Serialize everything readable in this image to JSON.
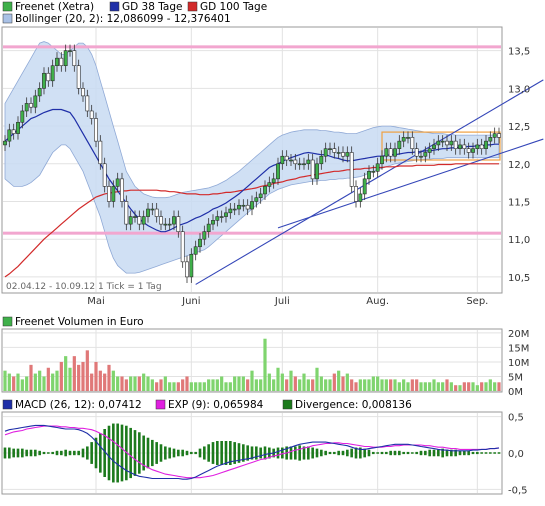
{
  "chart_data": [
    {
      "type": "candlestick",
      "panel": "price",
      "legend": [
        {
          "label": "Freenet (Xetra)",
          "color": "#3fb04a"
        },
        {
          "label": "GD 38 Tage",
          "color": "#1f2fa8"
        },
        {
          "label": "GD 100 Tage",
          "color": "#d22a2a"
        },
        {
          "label": "Bollinger (20, 2): 12,086099 - 12,376401",
          "color": "#a9c1e6"
        }
      ],
      "date_range_label": "02.04.12 - 10.09.12   1 Tick = 1 Tag",
      "x_tick_labels": [
        {
          "label": "Mai",
          "day": 21
        },
        {
          "label": "Juni",
          "day": 43
        },
        {
          "label": "Juli",
          "day": 64
        },
        {
          "label": "Aug.",
          "day": 86
        },
        {
          "label": "Sep.",
          "day": 109
        }
      ],
      "y_tick_labels": [
        "10,5",
        "11,0",
        "11,5",
        "12,0",
        "12,5",
        "13,0",
        "13,5"
      ],
      "ylim": [
        10.3,
        13.8
      ],
      "x_days": 115,
      "close": [
        12.3,
        12.45,
        12.4,
        12.55,
        12.7,
        12.8,
        12.75,
        12.9,
        13.0,
        13.2,
        13.1,
        13.3,
        13.4,
        13.3,
        13.5,
        13.5,
        13.3,
        13.0,
        12.9,
        12.7,
        12.6,
        12.3,
        12.0,
        11.7,
        11.5,
        11.7,
        11.8,
        11.5,
        11.2,
        11.3,
        11.3,
        11.2,
        11.3,
        11.4,
        11.4,
        11.3,
        11.2,
        11.2,
        11.2,
        11.3,
        11.1,
        10.7,
        10.5,
        10.8,
        10.9,
        11.0,
        11.1,
        11.2,
        11.25,
        11.3,
        11.3,
        11.35,
        11.4,
        11.4,
        11.45,
        11.45,
        11.4,
        11.5,
        11.55,
        11.6,
        11.7,
        11.75,
        11.8,
        12.0,
        12.1,
        12.05,
        12.05,
        12.0,
        12.0,
        12.0,
        12.05,
        11.8,
        12.0,
        12.1,
        12.2,
        12.2,
        12.15,
        12.15,
        12.1,
        12.15,
        11.7,
        11.5,
        11.6,
        11.8,
        11.9,
        11.9,
        12.0,
        12.1,
        12.2,
        12.1,
        12.2,
        12.3,
        12.35,
        12.35,
        12.2,
        12.1,
        12.1,
        12.15,
        12.2,
        12.25,
        12.3,
        12.3,
        12.25,
        12.3,
        12.2,
        12.25,
        12.2,
        12.15,
        12.2,
        12.25,
        12.2,
        12.3,
        12.35,
        12.4,
        12.35
      ],
      "gd38": [
        12.3,
        12.35,
        12.4,
        12.45,
        12.5,
        12.55,
        12.6,
        12.62,
        12.65,
        12.68,
        12.7,
        12.72,
        12.72,
        12.72,
        12.7,
        12.68,
        12.6,
        12.5,
        12.4,
        12.3,
        12.2,
        12.1,
        12.0,
        11.9,
        11.8,
        11.72,
        11.64,
        11.56,
        11.48,
        11.4,
        11.33,
        11.27,
        11.22,
        11.18,
        11.15,
        11.12,
        11.1,
        11.1,
        11.12,
        11.15,
        11.18,
        11.2,
        11.22,
        11.25,
        11.28,
        11.3,
        11.33,
        11.36,
        11.4,
        11.42,
        11.45,
        11.48,
        11.52,
        11.56,
        11.6,
        11.65,
        11.7,
        11.75,
        11.8,
        11.85,
        11.9,
        11.95,
        11.98,
        12.0,
        12.03,
        12.06,
        12.08,
        12.1,
        12.12,
        12.14,
        12.15,
        12.14,
        12.13,
        12.12,
        12.12,
        12.1,
        12.08,
        12.07,
        12.05,
        12.04,
        12.04,
        12.05,
        12.06,
        12.07,
        12.08,
        12.09,
        12.1,
        12.1,
        12.11,
        12.12,
        12.12,
        12.13,
        12.14,
        12.15,
        12.15,
        12.16,
        12.16,
        12.17,
        12.17,
        12.18,
        12.19,
        12.2,
        12.2,
        12.21,
        12.21,
        12.22,
        12.22,
        12.23,
        12.23,
        12.24,
        12.24,
        12.25,
        12.25,
        12.26,
        12.26
      ],
      "gd100": [
        10.5,
        10.54,
        10.59,
        10.64,
        10.7,
        10.76,
        10.82,
        10.88,
        10.94,
        11.0,
        11.05,
        11.1,
        11.15,
        11.2,
        11.25,
        11.3,
        11.35,
        11.4,
        11.44,
        11.48,
        11.52,
        11.56,
        11.58,
        11.6,
        11.61,
        11.62,
        11.63,
        11.64,
        11.64,
        11.65,
        11.65,
        11.65,
        11.65,
        11.65,
        11.65,
        11.65,
        11.64,
        11.64,
        11.63,
        11.63,
        11.62,
        11.61,
        11.6,
        11.6,
        11.6,
        11.59,
        11.59,
        11.59,
        11.6,
        11.6,
        11.61,
        11.62,
        11.62,
        11.63,
        11.64,
        11.65,
        11.66,
        11.67,
        11.68,
        11.7,
        11.71,
        11.72,
        11.74,
        11.75,
        11.76,
        11.78,
        11.79,
        11.8,
        11.82,
        11.83,
        11.84,
        11.85,
        11.86,
        11.87,
        11.88,
        11.89,
        11.9,
        11.9,
        11.91,
        11.92,
        11.92,
        11.93,
        11.93,
        11.94,
        11.94,
        11.95,
        11.95,
        11.95,
        11.96,
        11.96,
        11.96,
        11.97,
        11.97,
        11.97,
        11.97,
        11.98,
        11.98,
        11.98,
        11.98,
        11.98,
        11.99,
        11.99,
        11.99,
        11.99,
        12.0,
        12.0,
        12.0,
        12.0,
        12.0,
        12.0,
        12.0,
        12.0,
        12.0,
        12.0,
        12.0
      ],
      "boll_upper": [
        12.8,
        12.9,
        13.0,
        13.1,
        13.2,
        13.3,
        13.4,
        13.5,
        13.6,
        13.62,
        13.6,
        13.55,
        13.5,
        13.45,
        13.45,
        13.5,
        13.55,
        13.6,
        13.6,
        13.55,
        13.45,
        13.3,
        13.1,
        12.9,
        12.7,
        12.5,
        12.3,
        12.1,
        11.9,
        11.8,
        11.7,
        11.65,
        11.6,
        11.58,
        11.56,
        11.55,
        11.55,
        11.55,
        11.56,
        11.58,
        11.6,
        11.62,
        11.63,
        11.64,
        11.65,
        11.66,
        11.67,
        11.68,
        11.7,
        11.72,
        11.75,
        11.78,
        11.82,
        11.86,
        11.9,
        11.95,
        12.0,
        12.05,
        12.1,
        12.15,
        12.2,
        12.25,
        12.3,
        12.35,
        12.38,
        12.4,
        12.42,
        12.43,
        12.44,
        12.45,
        12.45,
        12.45,
        12.45,
        12.44,
        12.44,
        12.43,
        12.42,
        12.42,
        12.41,
        12.4,
        12.4,
        12.4,
        12.42,
        12.44,
        12.46,
        12.48,
        12.49,
        12.5,
        12.5,
        12.5,
        12.49,
        12.48,
        12.47,
        12.46,
        12.45,
        12.44,
        12.43,
        12.42,
        12.41,
        12.4,
        12.4,
        12.4,
        12.39,
        12.39,
        12.38,
        12.38,
        12.38,
        12.38,
        12.38,
        12.38,
        12.38,
        12.38,
        12.38,
        12.38,
        12.38
      ],
      "boll_lower": [
        11.8,
        11.75,
        11.7,
        11.7,
        11.7,
        11.72,
        11.75,
        11.8,
        11.85,
        11.95,
        12.05,
        12.15,
        12.2,
        12.25,
        12.25,
        12.2,
        12.1,
        12.0,
        11.9,
        11.75,
        11.6,
        11.45,
        11.3,
        11.1,
        10.9,
        10.75,
        10.65,
        10.6,
        10.55,
        10.55,
        10.55,
        10.56,
        10.58,
        10.6,
        10.62,
        10.64,
        10.66,
        10.68,
        10.7,
        10.72,
        10.74,
        10.76,
        10.78,
        10.8,
        10.82,
        10.84,
        10.86,
        10.9,
        10.95,
        11.0,
        11.05,
        11.1,
        11.15,
        11.2,
        11.25,
        11.3,
        11.35,
        11.4,
        11.45,
        11.5,
        11.55,
        11.6,
        11.63,
        11.66,
        11.68,
        11.7,
        11.72,
        11.73,
        11.74,
        11.75,
        11.76,
        11.77,
        11.77,
        11.78,
        11.78,
        11.79,
        11.79,
        11.8,
        11.8,
        11.81,
        11.81,
        11.82,
        11.83,
        11.85,
        11.88,
        11.9,
        11.92,
        11.94,
        11.96,
        11.98,
        12.0,
        12.01,
        12.02,
        12.03,
        12.04,
        12.05,
        12.05,
        12.06,
        12.06,
        12.07,
        12.07,
        12.07,
        12.08,
        12.08,
        12.08,
        12.08,
        12.08,
        12.08,
        12.08,
        12.08,
        12.08,
        12.08,
        12.08,
        12.08,
        12.08
      ],
      "hlines_pink": [
        13.55,
        11.08
      ],
      "trend_lines": [
        {
          "from": {
            "day": 44,
            "value": 10.4
          },
          "to": {
            "day": 115,
            "value": 12.8
          }
        },
        {
          "from": {
            "day": 63,
            "value": 11.15
          },
          "to": {
            "day": 115,
            "value": 12.15
          }
        }
      ],
      "orange_range": {
        "from_day": 87,
        "to_day": 115,
        "low": 12.05,
        "high": 12.42
      }
    },
    {
      "type": "bar",
      "panel": "volume",
      "legend": [
        {
          "label": "Freenet Volumen in Euro",
          "color": "#3fb04a"
        }
      ],
      "y_tick_labels": [
        "0M",
        "5M",
        "10M",
        "15M",
        "20M"
      ],
      "ylim": [
        0,
        21
      ],
      "values": [
        7,
        6,
        5,
        6,
        4,
        5,
        9,
        6,
        7,
        5,
        8,
        6,
        7,
        10,
        12,
        8,
        12,
        9,
        10,
        14,
        6,
        10,
        7,
        6,
        9,
        7,
        5,
        5,
        4,
        5,
        5,
        5,
        6,
        5,
        4,
        3,
        4,
        5,
        3,
        3,
        3,
        4,
        5,
        3,
        3,
        3,
        3,
        4,
        4,
        4,
        5,
        3,
        3,
        5,
        5,
        5,
        4,
        7,
        4,
        4,
        18,
        6,
        4,
        8,
        6,
        4,
        7,
        5,
        4,
        6,
        4,
        4,
        8,
        5,
        4,
        4,
        6,
        7,
        5,
        6,
        4,
        3,
        4,
        4,
        4,
        5,
        5,
        4,
        4,
        4,
        4,
        3,
        4,
        3,
        4,
        4,
        3,
        3,
        3,
        4,
        3,
        3,
        4,
        3,
        2,
        2,
        3,
        3,
        3,
        2,
        3,
        3,
        4,
        3,
        3
      ]
    },
    {
      "type": "line",
      "panel": "macd",
      "legend": [
        {
          "label": "MACD (26, 12): 0,07412",
          "color": "#1f2fa8"
        },
        {
          "label": "EXP (9): 0,065984",
          "color": "#e020e0"
        },
        {
          "label": "Divergence: 0,008136",
          "color": "#1c7a1c"
        }
      ],
      "y_tick_labels": [
        "-0,5",
        "0,0",
        "0,5"
      ],
      "ylim": [
        -0.55,
        0.55
      ],
      "macd": [
        0.3,
        0.32,
        0.33,
        0.34,
        0.35,
        0.36,
        0.37,
        0.38,
        0.38,
        0.38,
        0.37,
        0.36,
        0.35,
        0.34,
        0.33,
        0.33,
        0.33,
        0.32,
        0.3,
        0.27,
        0.22,
        0.16,
        0.09,
        0.02,
        -0.05,
        -0.11,
        -0.16,
        -0.2,
        -0.24,
        -0.27,
        -0.3,
        -0.32,
        -0.33,
        -0.34,
        -0.35,
        -0.35,
        -0.35,
        -0.35,
        -0.35,
        -0.35,
        -0.35,
        -0.36,
        -0.36,
        -0.35,
        -0.33,
        -0.3,
        -0.27,
        -0.24,
        -0.21,
        -0.18,
        -0.16,
        -0.14,
        -0.12,
        -0.11,
        -0.1,
        -0.09,
        -0.08,
        -0.07,
        -0.05,
        -0.04,
        -0.02,
        -0.01,
        0.0,
        0.02,
        0.04,
        0.06,
        0.08,
        0.1,
        0.12,
        0.13,
        0.14,
        0.15,
        0.15,
        0.15,
        0.15,
        0.14,
        0.13,
        0.12,
        0.11,
        0.1,
        0.08,
        0.06,
        0.05,
        0.05,
        0.06,
        0.07,
        0.08,
        0.09,
        0.1,
        0.11,
        0.12,
        0.12,
        0.12,
        0.12,
        0.11,
        0.1,
        0.09,
        0.08,
        0.07,
        0.06,
        0.05,
        0.04,
        0.04,
        0.03,
        0.03,
        0.03,
        0.03,
        0.03,
        0.04,
        0.04,
        0.05,
        0.05,
        0.06,
        0.06,
        0.07
      ],
      "exp": [
        0.25,
        0.27,
        0.29,
        0.3,
        0.31,
        0.33,
        0.34,
        0.35,
        0.36,
        0.37,
        0.37,
        0.37,
        0.37,
        0.36,
        0.36,
        0.35,
        0.35,
        0.34,
        0.34,
        0.33,
        0.32,
        0.3,
        0.27,
        0.24,
        0.2,
        0.16,
        0.11,
        0.06,
        0.01,
        -0.04,
        -0.09,
        -0.13,
        -0.17,
        -0.2,
        -0.23,
        -0.25,
        -0.27,
        -0.29,
        -0.3,
        -0.31,
        -0.32,
        -0.33,
        -0.34,
        -0.34,
        -0.34,
        -0.34,
        -0.33,
        -0.32,
        -0.31,
        -0.29,
        -0.27,
        -0.25,
        -0.23,
        -0.21,
        -0.19,
        -0.17,
        -0.15,
        -0.13,
        -0.11,
        -0.09,
        -0.08,
        -0.06,
        -0.04,
        -0.03,
        -0.01,
        0.0,
        0.02,
        0.04,
        0.05,
        0.07,
        0.08,
        0.1,
        0.11,
        0.12,
        0.13,
        0.13,
        0.14,
        0.14,
        0.13,
        0.13,
        0.12,
        0.11,
        0.1,
        0.09,
        0.09,
        0.08,
        0.08,
        0.08,
        0.09,
        0.09,
        0.1,
        0.1,
        0.11,
        0.11,
        0.11,
        0.11,
        0.11,
        0.1,
        0.1,
        0.09,
        0.08,
        0.08,
        0.07,
        0.06,
        0.06,
        0.05,
        0.05,
        0.05,
        0.05,
        0.05,
        0.05,
        0.05,
        0.06,
        0.06,
        0.07
      ]
    }
  ]
}
